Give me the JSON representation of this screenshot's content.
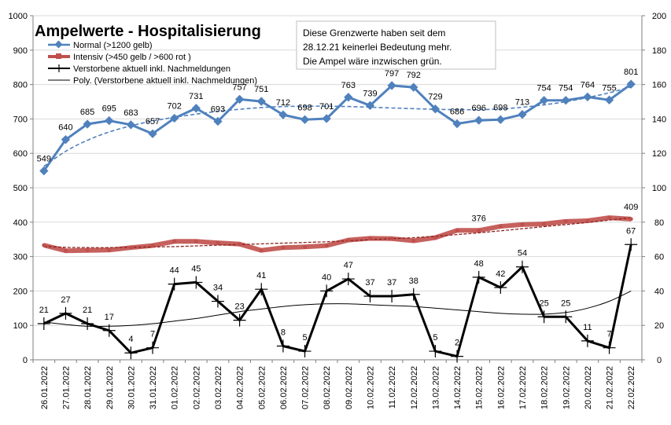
{
  "chart_data": {
    "type": "line",
    "title": "Ampelwerte - Hospitalisierung",
    "note_lines": [
      "Diese Grenzwerte haben seit dem",
      "28.12.21 keinerlei Bedeutung mehr.",
      "Die Ampel wäre inzwischen grün."
    ],
    "categories": [
      "26.01.2022",
      "27.01.2022",
      "28.01.2022",
      "29.01.2022",
      "30.01.2022",
      "31.01.2022",
      "01.02.2022",
      "02.02.2022",
      "03.02.2022",
      "04.02.2022",
      "05.02.2022",
      "06.02.2022",
      "07.02.2022",
      "08.02.2022",
      "09.02.2022",
      "10.02.2022",
      "11.02.2022",
      "12.02.2022",
      "13.02.2022",
      "14.02.2022",
      "15.02.2022",
      "16.02.2022",
      "17.02.2022",
      "18.02.2022",
      "19.02.2022",
      "20.02.2022",
      "21.02.2022",
      "22.02.2022"
    ],
    "y_left": {
      "min": 0,
      "max": 1000,
      "step": 100
    },
    "y_right": {
      "min": 0,
      "max": 200,
      "step": 20
    },
    "series": [
      {
        "name": "Normal (>1200 gelb)",
        "axis": "left",
        "color": "#4F81BD",
        "values": [
          549,
          640,
          685,
          695,
          683,
          657,
          702,
          731,
          693,
          757,
          751,
          712,
          698,
          701,
          763,
          739,
          797,
          792,
          729,
          686,
          696,
          698,
          713,
          754,
          754,
          764,
          755,
          801
        ],
        "labels": [
          "549",
          "640",
          "685",
          "695",
          "683",
          "657",
          "702",
          "731",
          "693",
          "757",
          "751",
          "712",
          "698",
          "701",
          "763",
          "739",
          "797",
          "792",
          "729",
          "686",
          "696",
          "698",
          "713",
          "754",
          "754",
          "764",
          "755",
          "801"
        ],
        "trend_values": [
          562,
          606,
          638,
          662,
          680,
          694,
          705,
          714,
          722,
          728,
          733,
          736,
          737,
          737,
          736,
          734,
          732,
          730,
          728,
          727,
          727,
          729,
          734,
          741,
          750,
          762,
          776,
          793
        ]
      },
      {
        "name": "Intensiv (>450 gelb / >600 rot )",
        "axis": "left",
        "color": "#C0504D",
        "values": [
          333,
          317,
          318,
          319,
          326,
          332,
          344,
          344,
          340,
          336,
          318,
          326,
          328,
          332,
          348,
          353,
          352,
          346,
          355,
          376,
          376,
          388,
          393,
          395,
          402,
          404,
          413,
          409
        ],
        "labels": [
          "",
          "",
          "",
          "",
          "",
          "",
          "",
          "",
          "",
          "",
          "",
          "",
          "",
          "",
          "",
          "",
          "",
          "",
          "",
          "",
          "376",
          "",
          "",
          "",
          "",
          "",
          "",
          "409"
        ],
        "trend_values": [
          330,
          327,
          326,
          326,
          327,
          328,
          329,
          331,
          333,
          335,
          337,
          339,
          341,
          343,
          346,
          349,
          352,
          355,
          359,
          364,
          369,
          375,
          381,
          387,
          393,
          399,
          406,
          413
        ]
      },
      {
        "name": "Verstorbene aktuell inkl. Nachmeldungen",
        "axis": "right",
        "color": "#000000",
        "values": [
          21,
          27,
          21,
          17,
          4,
          7,
          44,
          45,
          34,
          23,
          41,
          8,
          5,
          40,
          47,
          37,
          37,
          38,
          5,
          2,
          48,
          42,
          54,
          25,
          25,
          11,
          7,
          67
        ],
        "labels": [
          "21",
          "27",
          "21",
          "17",
          "4",
          "7",
          "44",
          "45",
          "34",
          "23",
          "41",
          "8",
          "5",
          "40",
          "47",
          "37",
          "37",
          "38",
          "5",
          "2",
          "48",
          "42",
          "54",
          "25",
          "25",
          "11",
          "7",
          "67"
        ]
      },
      {
        "name": "Poly. (Verstorbene aktuell inkl. Nachmeldungen)",
        "axis": "right",
        "color": "#000000",
        "values": [
          22,
          20.5,
          19.5,
          19.5,
          20,
          21,
          22.5,
          24,
          26,
          28,
          29.5,
          31,
          32,
          32.5,
          32.5,
          32,
          31.5,
          31,
          30,
          29,
          28,
          27,
          26.5,
          26.5,
          27.5,
          30,
          34,
          40
        ]
      }
    ]
  }
}
